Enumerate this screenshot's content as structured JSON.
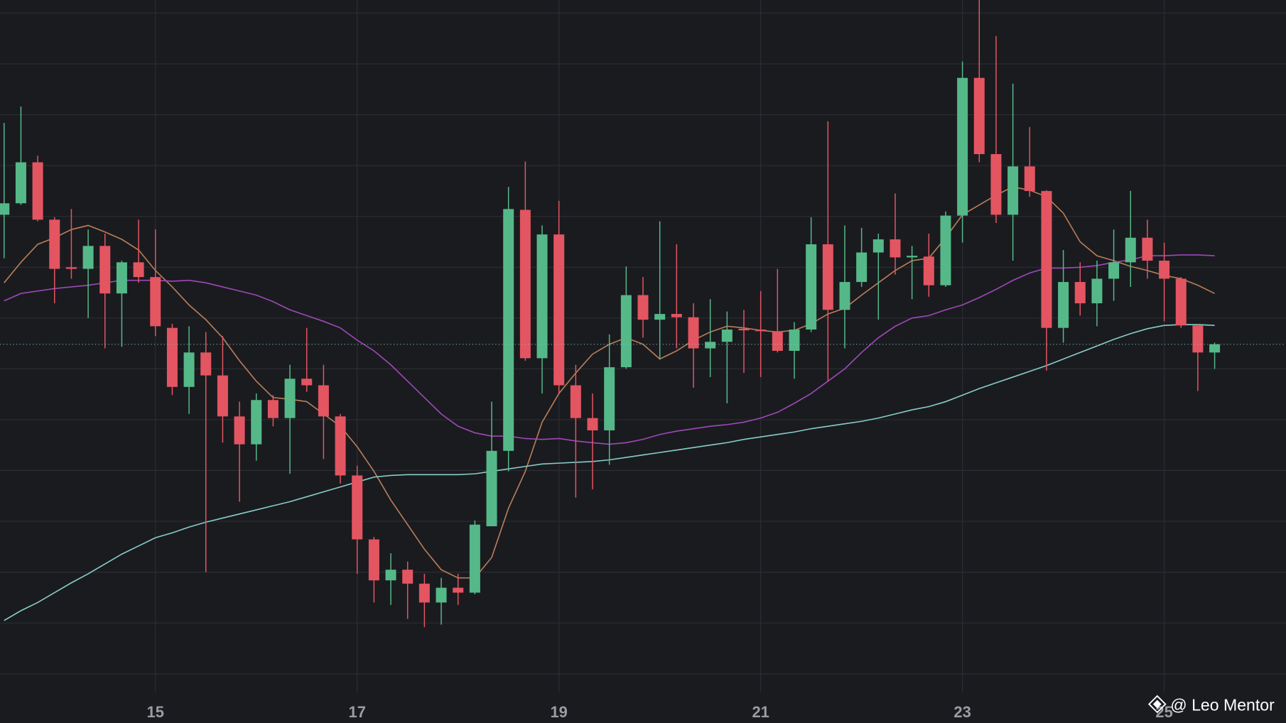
{
  "chart_data": {
    "type": "candlestick",
    "categories": [
      null,
      null,
      null,
      null,
      null,
      null,
      null,
      null,
      null,
      "15",
      null,
      null,
      null,
      null,
      null,
      null,
      null,
      null,
      null,
      null,
      null,
      "17",
      null,
      null,
      null,
      null,
      null,
      null,
      null,
      null,
      null,
      null,
      null,
      "19",
      null,
      null,
      null,
      null,
      null,
      null,
      null,
      null,
      null,
      null,
      null,
      "21",
      null,
      null,
      null,
      null,
      null,
      null,
      null,
      null,
      null,
      null,
      null,
      "23",
      null,
      null,
      null,
      null,
      null,
      null,
      null,
      null,
      null,
      null,
      null,
      "25",
      null,
      null,
      null
    ],
    "open": [
      560,
      574,
      624,
      554,
      496,
      494,
      522,
      464,
      502,
      484,
      422,
      350,
      392,
      364,
      314,
      280,
      334,
      312,
      360,
      352,
      314,
      242,
      164,
      114,
      127,
      110,
      87,
      105,
      99,
      180,
      272,
      566,
      385,
      536,
      352,
      312,
      297,
      374,
      462,
      432,
      439,
      435,
      397,
      405,
      421,
      420,
      418,
      394,
      420,
      524,
      444,
      478,
      514,
      530,
      508,
      509,
      474,
      559,
      727,
      634,
      560,
      619,
      589,
      422,
      478,
      452,
      482,
      502,
      532,
      504,
      482,
      425,
      392
    ],
    "high": [
      672,
      692,
      632,
      557,
      567,
      542,
      537,
      504,
      554,
      542,
      427,
      424,
      417,
      412,
      332,
      342,
      340,
      377,
      422,
      377,
      317,
      254,
      167,
      147,
      137,
      122,
      117,
      122,
      187,
      332,
      594,
      625,
      547,
      577,
      377,
      342,
      414,
      497,
      484,
      552,
      524,
      452,
      457,
      442,
      444,
      467,
      494,
      429,
      557,
      674,
      547,
      544,
      537,
      586,
      522,
      537,
      564,
      747,
      822,
      778,
      720,
      667,
      590,
      517,
      502,
      504,
      542,
      589,
      554,
      526,
      484,
      427,
      404
    ],
    "low": [
      507,
      572,
      552,
      452,
      482,
      434,
      397,
      399,
      477,
      412,
      340,
      317,
      124,
      282,
      210,
      260,
      302,
      244,
      344,
      262,
      232,
      122,
      87,
      84,
      67,
      57,
      60,
      84,
      97,
      180,
      247,
      382,
      342,
      342,
      215,
      225,
      255,
      372,
      410,
      384,
      397,
      349,
      362,
      330,
      367,
      362,
      392,
      360,
      417,
      357,
      397,
      472,
      432,
      487,
      457,
      460,
      472,
      526,
      624,
      550,
      504,
      582,
      370,
      404,
      437,
      424,
      455,
      472,
      482,
      430,
      422,
      345,
      372
    ],
    "close": [
      574,
      624,
      554,
      494,
      494,
      522,
      464,
      502,
      484,
      424,
      350,
      392,
      364,
      314,
      280,
      334,
      312,
      360,
      352,
      314,
      242,
      164,
      114,
      127,
      110,
      87,
      105,
      99,
      182,
      272,
      567,
      385,
      536,
      352,
      312,
      297,
      374,
      462,
      432,
      439,
      435,
      397,
      405,
      420,
      419,
      418,
      394,
      420,
      524,
      444,
      478,
      514,
      530,
      508,
      510,
      474,
      559,
      727,
      634,
      560,
      619,
      589,
      422,
      478,
      452,
      482,
      502,
      532,
      504,
      482,
      425,
      392,
      402
    ],
    "up_color": "#55b888",
    "down_color": "#e35561",
    "lines": [
      {
        "color": "#b97e58",
        "values": [
          477,
          502,
          524,
          532,
          542,
          547,
          539,
          530,
          517,
          492,
          472,
          450,
          432,
          410,
          382,
          357,
          337,
          335,
          332,
          317,
          302,
          277,
          247,
          212,
          182,
          152,
          127,
          117,
          117,
          142,
          202,
          247,
          307,
          342,
          367,
          390,
          402,
          410,
          402,
          384,
          394,
          407,
          417,
          424,
          422,
          419,
          417,
          419,
          427,
          439,
          446,
          462,
          477,
          492,
          504,
          507,
          532,
          560,
          572,
          584,
          594,
          590,
          582,
          562,
          527,
          510,
          504,
          497,
          492,
          486,
          482,
          474,
          464
        ]
      },
      {
        "color": "#9f48b8",
        "values": [
          455,
          464,
          467,
          470,
          472,
          474,
          477,
          480,
          480,
          480,
          479,
          480,
          477,
          472,
          467,
          462,
          454,
          444,
          437,
          430,
          422,
          407,
          394,
          377,
          357,
          337,
          317,
          302,
          294,
          290,
          290,
          287,
          286,
          287,
          284,
          282,
          280,
          282,
          286,
          292,
          296,
          299,
          302,
          304,
          307,
          312,
          319,
          330,
          342,
          357,
          372,
          392,
          410,
          424,
          434,
          437,
          444,
          450,
          459,
          469,
          480,
          489,
          495,
          495,
          496,
          498,
          502,
          505,
          510,
          510,
          511,
          511,
          510
        ]
      },
      {
        "color": "#86cdca",
        "values": [
          65,
          77,
          87,
          99,
          111,
          122,
          134,
          146,
          156,
          166,
          172,
          179,
          185,
          190,
          195,
          200,
          205,
          210,
          216,
          222,
          228,
          234,
          240,
          242,
          243,
          243,
          243,
          243,
          244,
          247,
          250,
          253,
          256,
          257,
          258,
          259,
          261,
          264,
          267,
          270,
          273,
          276,
          279,
          282,
          286,
          289,
          292,
          295,
          299,
          302,
          305,
          308,
          312,
          317,
          322,
          326,
          332,
          340,
          348,
          355,
          362,
          369,
          376,
          384,
          392,
          400,
          408,
          415,
          421,
          425,
          426,
          426,
          425
        ]
      }
    ],
    "ylim": [
      -25,
      822
    ],
    "yticks": [
      0,
      62,
      124,
      186,
      248,
      310,
      372,
      434,
      496,
      558,
      620,
      682,
      744,
      806
    ],
    "grid": true,
    "watermark": "@ Leo Mentor"
  }
}
